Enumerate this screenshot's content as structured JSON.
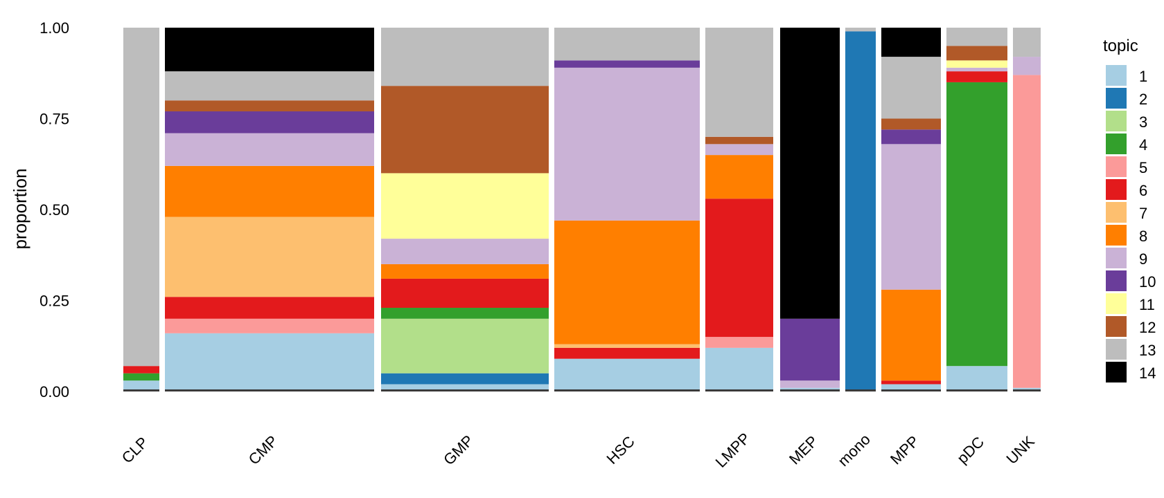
{
  "chart_data": {
    "type": "bar",
    "subtype": "stacked-structure-plot",
    "title": "",
    "xlabel": "",
    "ylabel": "proportion",
    "ylim": [
      0,
      1
    ],
    "yticks": [
      "0.00",
      "0.25",
      "0.50",
      "0.75",
      "1.00"
    ],
    "grid": false,
    "legend": {
      "title": "topic",
      "placement": "right",
      "entries": [
        "1",
        "2",
        "3",
        "4",
        "5",
        "6",
        "7",
        "8",
        "9",
        "10",
        "11",
        "12",
        "13",
        "14"
      ]
    },
    "topic_colors": [
      "#a6cee3",
      "#1f78b4",
      "#b2df8a",
      "#33a02c",
      "#fb9a99",
      "#e31a1c",
      "#fdbf6f",
      "#ff7f00",
      "#cab2d6",
      "#6a3d9a",
      "#ffff99",
      "#b15928",
      "#bdbdbd",
      "#000000"
    ],
    "groups": [
      {
        "label": "CLP",
        "mean_proportions": {
          "13": 0.93,
          "1": 0.03,
          "6": 0.02,
          "4": 0.02
        }
      },
      {
        "label": "CMP",
        "mean_proportions": {
          "1": 0.16,
          "7": 0.22,
          "8": 0.14,
          "6": 0.06,
          "5": 0.04,
          "9": 0.09,
          "10": 0.06,
          "12": 0.03,
          "13": 0.08,
          "14": 0.12
        }
      },
      {
        "label": "GMP",
        "mean_proportions": {
          "3": 0.15,
          "6": 0.08,
          "12": 0.24,
          "11": 0.18,
          "13": 0.16,
          "8": 0.04,
          "2": 0.03,
          "4": 0.03,
          "1": 0.02,
          "9": 0.07
        }
      },
      {
        "label": "HSC",
        "mean_proportions": {
          "8": 0.34,
          "9": 0.42,
          "1": 0.09,
          "13": 0.09,
          "6": 0.03,
          "10": 0.02,
          "7": 0.01
        }
      },
      {
        "label": "LMPP",
        "mean_proportions": {
          "6": 0.38,
          "8": 0.12,
          "1": 0.12,
          "5": 0.03,
          "9": 0.03,
          "12": 0.02,
          "13": 0.3
        }
      },
      {
        "label": "MEP",
        "mean_proportions": {
          "14": 0.8,
          "10": 0.17,
          "9": 0.02,
          "1": 0.01
        }
      },
      {
        "label": "mono",
        "mean_proportions": {
          "2": 0.99,
          "13": 0.01
        }
      },
      {
        "label": "MPP",
        "mean_proportions": {
          "9": 0.4,
          "8": 0.25,
          "13": 0.17,
          "14": 0.08,
          "10": 0.04,
          "12": 0.03,
          "1": 0.02,
          "6": 0.01
        }
      },
      {
        "label": "pDC",
        "mean_proportions": {
          "4": 0.78,
          "1": 0.07,
          "12": 0.04,
          "13": 0.05,
          "6": 0.03,
          "11": 0.02,
          "9": 0.01
        }
      },
      {
        "label": "UNK",
        "mean_proportions": {
          "5": 0.86,
          "13": 0.08,
          "9": 0.05,
          "1": 0.01
        }
      }
    ]
  }
}
